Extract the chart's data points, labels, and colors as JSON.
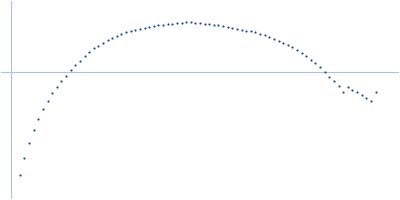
{
  "dot_color": "#1f5096",
  "dot_size": 2.5,
  "background_color": "#ffffff",
  "hline_color": "#a8c4df",
  "vline_color": "#a8c4df",
  "figsize": [
    4.0,
    2.0
  ],
  "dpi": 100,
  "x_data": [
    0.01,
    0.015,
    0.02,
    0.025,
    0.03,
    0.035,
    0.04,
    0.045,
    0.05,
    0.055,
    0.06,
    0.065,
    0.07,
    0.075,
    0.08,
    0.085,
    0.09,
    0.095,
    0.1,
    0.105,
    0.11,
    0.115,
    0.12,
    0.125,
    0.13,
    0.135,
    0.14,
    0.145,
    0.15,
    0.155,
    0.16,
    0.165,
    0.17,
    0.175,
    0.18,
    0.185,
    0.19,
    0.195,
    0.2,
    0.205,
    0.21,
    0.215,
    0.22,
    0.225,
    0.23,
    0.235,
    0.24,
    0.245,
    0.25,
    0.255,
    0.26,
    0.265,
    0.27,
    0.275,
    0.28,
    0.285,
    0.29,
    0.295,
    0.3,
    0.305,
    0.31,
    0.315,
    0.32,
    0.325,
    0.33,
    0.335,
    0.34,
    0.345,
    0.35,
    0.355,
    0.36,
    0.365,
    0.37,
    0.375,
    0.38,
    0.385,
    0.39,
    0.395
  ],
  "y_data": [
    -1.1,
    -0.92,
    -0.76,
    -0.62,
    -0.5,
    -0.4,
    -0.31,
    -0.23,
    -0.16,
    -0.1,
    -0.04,
    0.02,
    0.07,
    0.12,
    0.17,
    0.21,
    0.25,
    0.28,
    0.31,
    0.34,
    0.36,
    0.38,
    0.4,
    0.42,
    0.43,
    0.45,
    0.46,
    0.47,
    0.48,
    0.49,
    0.5,
    0.5,
    0.51,
    0.51,
    0.52,
    0.52,
    0.53,
    0.53,
    0.52,
    0.52,
    0.51,
    0.51,
    0.5,
    0.5,
    0.49,
    0.48,
    0.47,
    0.46,
    0.45,
    0.44,
    0.43,
    0.42,
    0.4,
    0.39,
    0.37,
    0.35,
    0.33,
    0.31,
    0.29,
    0.26,
    0.23,
    0.2,
    0.17,
    0.13,
    0.09,
    0.05,
    0.0,
    -0.05,
    -0.1,
    -0.15,
    -0.21,
    -0.16,
    -0.19,
    -0.22,
    -0.25,
    -0.28,
    -0.31,
    -0.22
  ],
  "xlim": [
    -0.01,
    0.42
  ],
  "ylim": [
    -1.35,
    0.75
  ]
}
